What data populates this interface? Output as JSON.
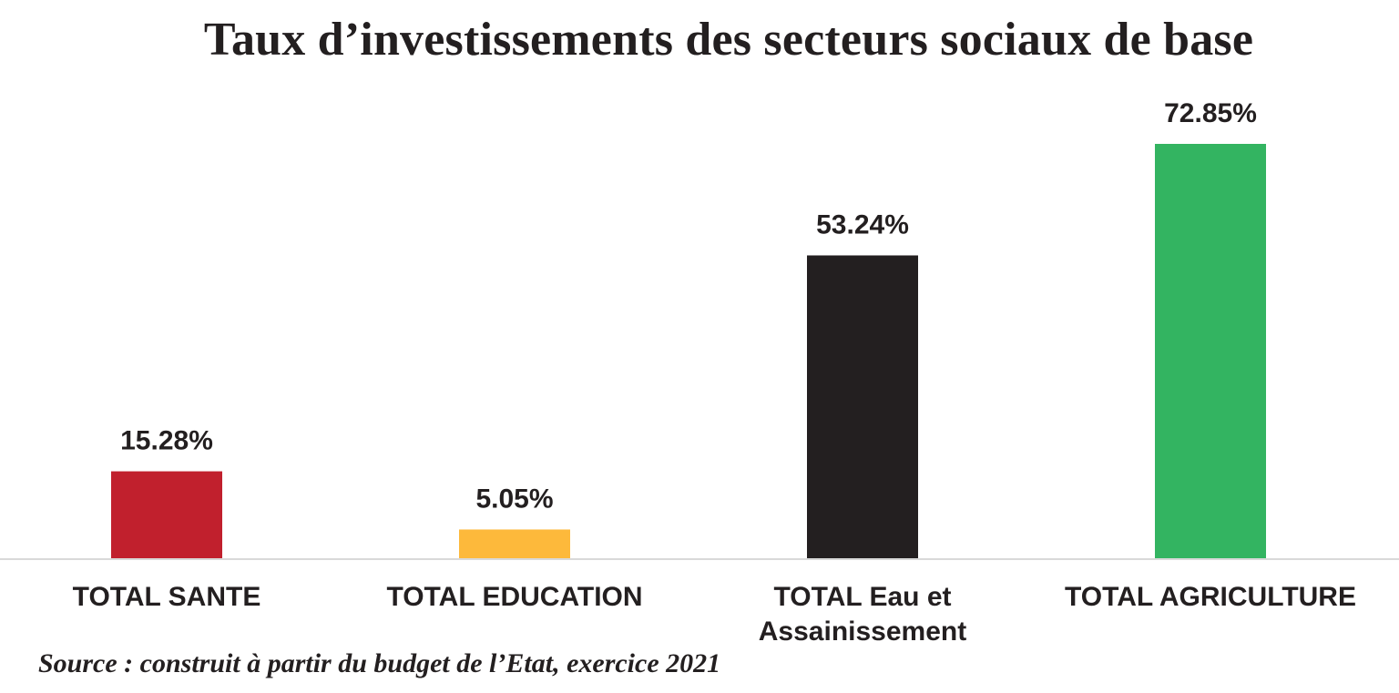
{
  "chart_data": {
    "type": "bar",
    "title": "Taux d’investissements des secteurs sociaux de base",
    "categories": [
      [
        "TOTAL SANTE"
      ],
      [
        "TOTAL EDUCATION"
      ],
      [
        "TOTAL Eau et",
        "Assainissement"
      ],
      [
        "TOTAL AGRICULTURE"
      ]
    ],
    "values": [
      15.28,
      5.05,
      53.24,
      72.85
    ],
    "value_labels": [
      "15.28%",
      "5.05%",
      "53.24%",
      "72.85%"
    ],
    "colors": [
      "#c1202d",
      "#fdb93b",
      "#231f20",
      "#33b461"
    ],
    "ylim": [
      0,
      72.85
    ],
    "grid": false,
    "legend": "none",
    "xlabel": "",
    "ylabel": ""
  },
  "source": "Source : construit à partir du budget de l’Etat, exercice 2021"
}
